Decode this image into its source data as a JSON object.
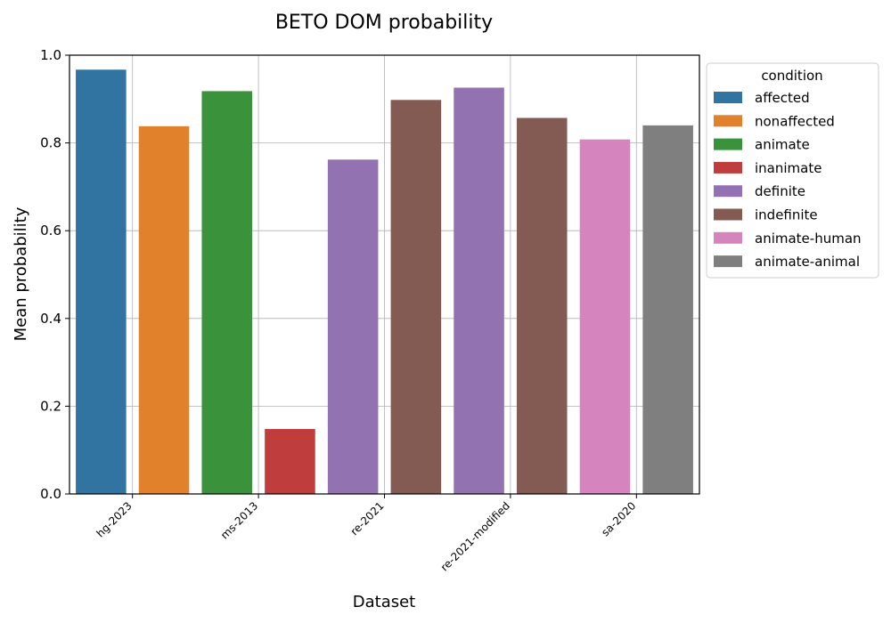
{
  "chart_data": {
    "type": "bar",
    "title": "BETO DOM probability",
    "xlabel": "Dataset",
    "ylabel": "Mean probability",
    "ylim": [
      0,
      1.0
    ],
    "yticks": [
      "0.0",
      "0.2",
      "0.4",
      "0.6",
      "0.8",
      "1.0"
    ],
    "grid": true,
    "legend_position": "outside-right",
    "legend_title": "condition",
    "categories": [
      "hg-2023",
      "ms-2013",
      "re-2021",
      "re-2021-modified",
      "sa-2020"
    ],
    "conditions": [
      {
        "name": "affected",
        "color": "#3274a1"
      },
      {
        "name": "nonaffected",
        "color": "#e1812c"
      },
      {
        "name": "animate",
        "color": "#3a923a"
      },
      {
        "name": "inanimate",
        "color": "#c03d3e"
      },
      {
        "name": "definite",
        "color": "#9372b2"
      },
      {
        "name": "indefinite",
        "color": "#845b53"
      },
      {
        "name": "animate-human",
        "color": "#d684bd"
      },
      {
        "name": "animate-animal",
        "color": "#7f7f7f"
      }
    ],
    "bars": [
      {
        "category": "hg-2023",
        "condition": "affected",
        "value": 0.967
      },
      {
        "category": "hg-2023",
        "condition": "nonaffected",
        "value": 0.838
      },
      {
        "category": "ms-2013",
        "condition": "animate",
        "value": 0.918
      },
      {
        "category": "ms-2013",
        "condition": "inanimate",
        "value": 0.148
      },
      {
        "category": "re-2021",
        "condition": "definite",
        "value": 0.762
      },
      {
        "category": "re-2021",
        "condition": "indefinite",
        "value": 0.898
      },
      {
        "category": "re-2021-modified",
        "condition": "definite",
        "value": 0.926
      },
      {
        "category": "re-2021-modified",
        "condition": "indefinite",
        "value": 0.857
      },
      {
        "category": "sa-2020",
        "condition": "animate-human",
        "value": 0.808
      },
      {
        "category": "sa-2020",
        "condition": "animate-animal",
        "value": 0.84
      }
    ]
  }
}
